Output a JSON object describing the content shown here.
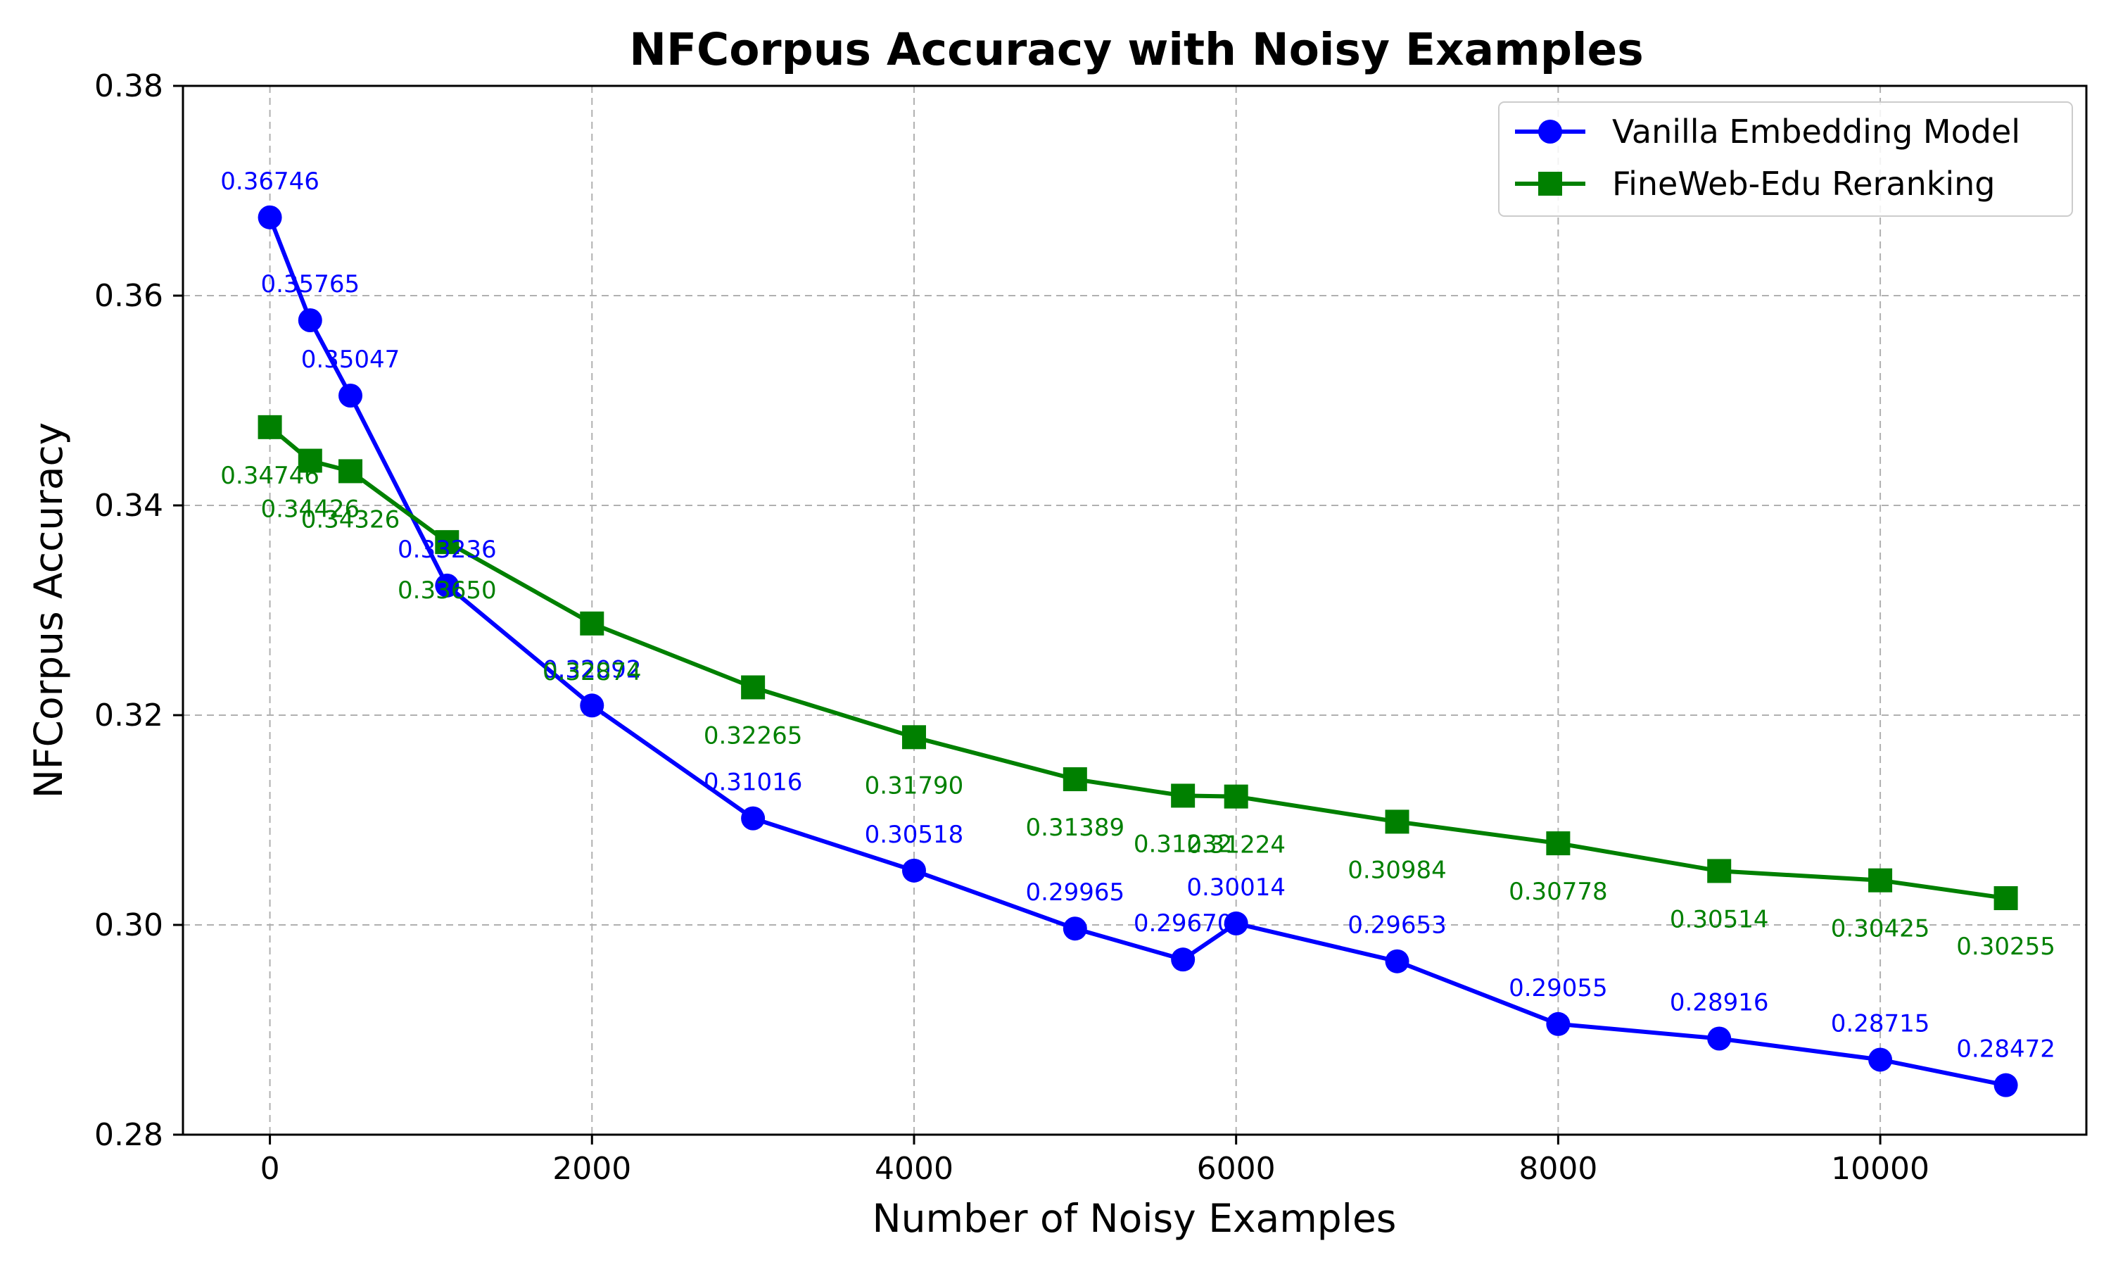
{
  "chart_data": {
    "type": "line",
    "title": "NFCorpus Accuracy with Noisy Examples",
    "xlabel": "Number of Noisy Examples",
    "ylabel": "NFCorpus Accuracy",
    "xlim": [
      -540,
      11280
    ],
    "ylim": [
      0.28,
      0.38
    ],
    "xticks": [
      0,
      2000,
      4000,
      6000,
      8000,
      10000
    ],
    "xtick_labels": [
      "0",
      "2000",
      "4000",
      "6000",
      "8000",
      "10000"
    ],
    "yticks": [
      0.28,
      0.3,
      0.32,
      0.34,
      0.36,
      0.38
    ],
    "ytick_labels": [
      "0.28",
      "0.30",
      "0.32",
      "0.34",
      "0.36",
      "0.38"
    ],
    "grid": true,
    "legend_position": "top-right",
    "series": [
      {
        "name": "Vanilla Embedding Model",
        "color": "#0000ff",
        "marker": "circle",
        "label_position": "above",
        "x": [
          0,
          250,
          500,
          1100,
          2000,
          3000,
          4000,
          5000,
          5670,
          6000,
          7000,
          8000,
          9000,
          10000,
          10780
        ],
        "y": [
          0.36746,
          0.35765,
          0.35047,
          0.33236,
          0.32092,
          0.31016,
          0.30518,
          0.29965,
          0.2967,
          0.30014,
          0.29653,
          0.29055,
          0.28916,
          0.28715,
          0.28472
        ],
        "labels": [
          "0.36746",
          "0.35765",
          "0.35047",
          "0.33236",
          "0.32092",
          "0.31016",
          "0.30518",
          "0.29965",
          "0.29670",
          "0.30014",
          "0.29653",
          "0.29055",
          "0.28916",
          "0.28715",
          "0.28472"
        ]
      },
      {
        "name": "FineWeb-Edu Reranking",
        "color": "#008000",
        "marker": "square",
        "label_position": "below",
        "x": [
          0,
          250,
          500,
          1100,
          2000,
          3000,
          4000,
          5000,
          5670,
          6000,
          7000,
          8000,
          9000,
          10000,
          10780
        ],
        "y": [
          0.34746,
          0.34426,
          0.34326,
          0.3365,
          0.32874,
          0.32265,
          0.3179,
          0.31389,
          0.31232,
          0.31224,
          0.30984,
          0.30778,
          0.30514,
          0.30425,
          0.30255
        ],
        "labels": [
          "0.34746",
          "0.34426",
          "0.34326",
          "0.33650",
          "0.32874",
          "0.32265",
          "0.31790",
          "0.31389",
          "0.31232",
          "0.31224",
          "0.30984",
          "0.30778",
          "0.30514",
          "0.30425",
          "0.30255"
        ]
      }
    ]
  }
}
